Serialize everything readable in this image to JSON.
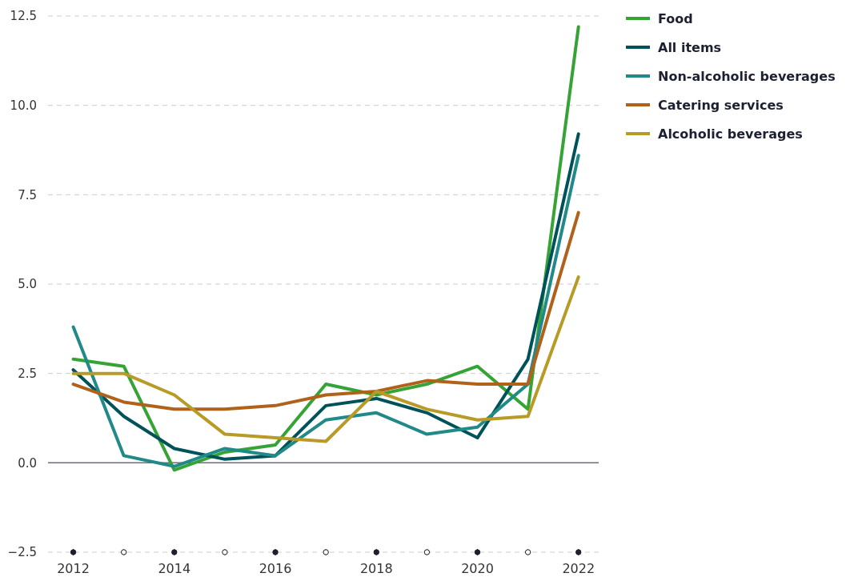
{
  "chart_data": {
    "type": "line",
    "x": [
      2012,
      2013,
      2014,
      2015,
      2016,
      2017,
      2018,
      2019,
      2020,
      2021,
      2022
    ],
    "series": [
      {
        "name": "Food",
        "color": "#35a335",
        "values": [
          2.9,
          2.7,
          -0.2,
          0.3,
          0.5,
          2.2,
          1.9,
          2.2,
          2.7,
          1.5,
          12.2
        ]
      },
      {
        "name": "All items",
        "color": "#00525a",
        "values": [
          2.6,
          1.3,
          0.4,
          0.1,
          0.2,
          1.6,
          1.8,
          1.4,
          0.7,
          2.9,
          9.2
        ]
      },
      {
        "name": "Non-alcoholic beverages",
        "color": "#218a88",
        "values": [
          3.8,
          0.2,
          -0.1,
          0.4,
          0.2,
          1.2,
          1.4,
          0.8,
          1.0,
          2.2,
          8.6
        ]
      },
      {
        "name": "Catering services",
        "color": "#b0621b",
        "values": [
          2.2,
          1.7,
          1.5,
          1.5,
          1.6,
          1.9,
          2.0,
          2.3,
          2.2,
          2.2,
          7.0
        ]
      },
      {
        "name": "Alcoholic beverages",
        "color": "#b89a26",
        "values": [
          2.5,
          2.5,
          1.9,
          0.8,
          0.7,
          0.6,
          2.0,
          1.5,
          1.2,
          1.3,
          5.2
        ]
      }
    ],
    "xlim": [
      2011.5,
      2022.4
    ],
    "xticks": [
      2012,
      {
        "value": 2013,
        "label": null
      },
      2014,
      {
        "value": 2015,
        "label": null
      },
      2016,
      {
        "value": 2017,
        "label": null
      },
      2018,
      {
        "value": 2019,
        "label": null
      },
      2020,
      {
        "value": 2021,
        "label": null
      },
      2022
    ],
    "ylim": [
      -2.5,
      12.5
    ],
    "yticks": [
      {
        "value": -2.5,
        "label": "−2.5"
      },
      {
        "value": 0,
        "label": "0.0"
      },
      {
        "value": 2.5,
        "label": "2.5"
      },
      {
        "value": 5,
        "label": "5.0"
      },
      {
        "value": 7.5,
        "label": "7.5"
      },
      {
        "value": 10,
        "label": "10.0"
      },
      {
        "value": 12.5,
        "label": "12.5"
      }
    ],
    "grid": "y",
    "legend": "top right",
    "marker": "none",
    "line_style": "solid"
  }
}
